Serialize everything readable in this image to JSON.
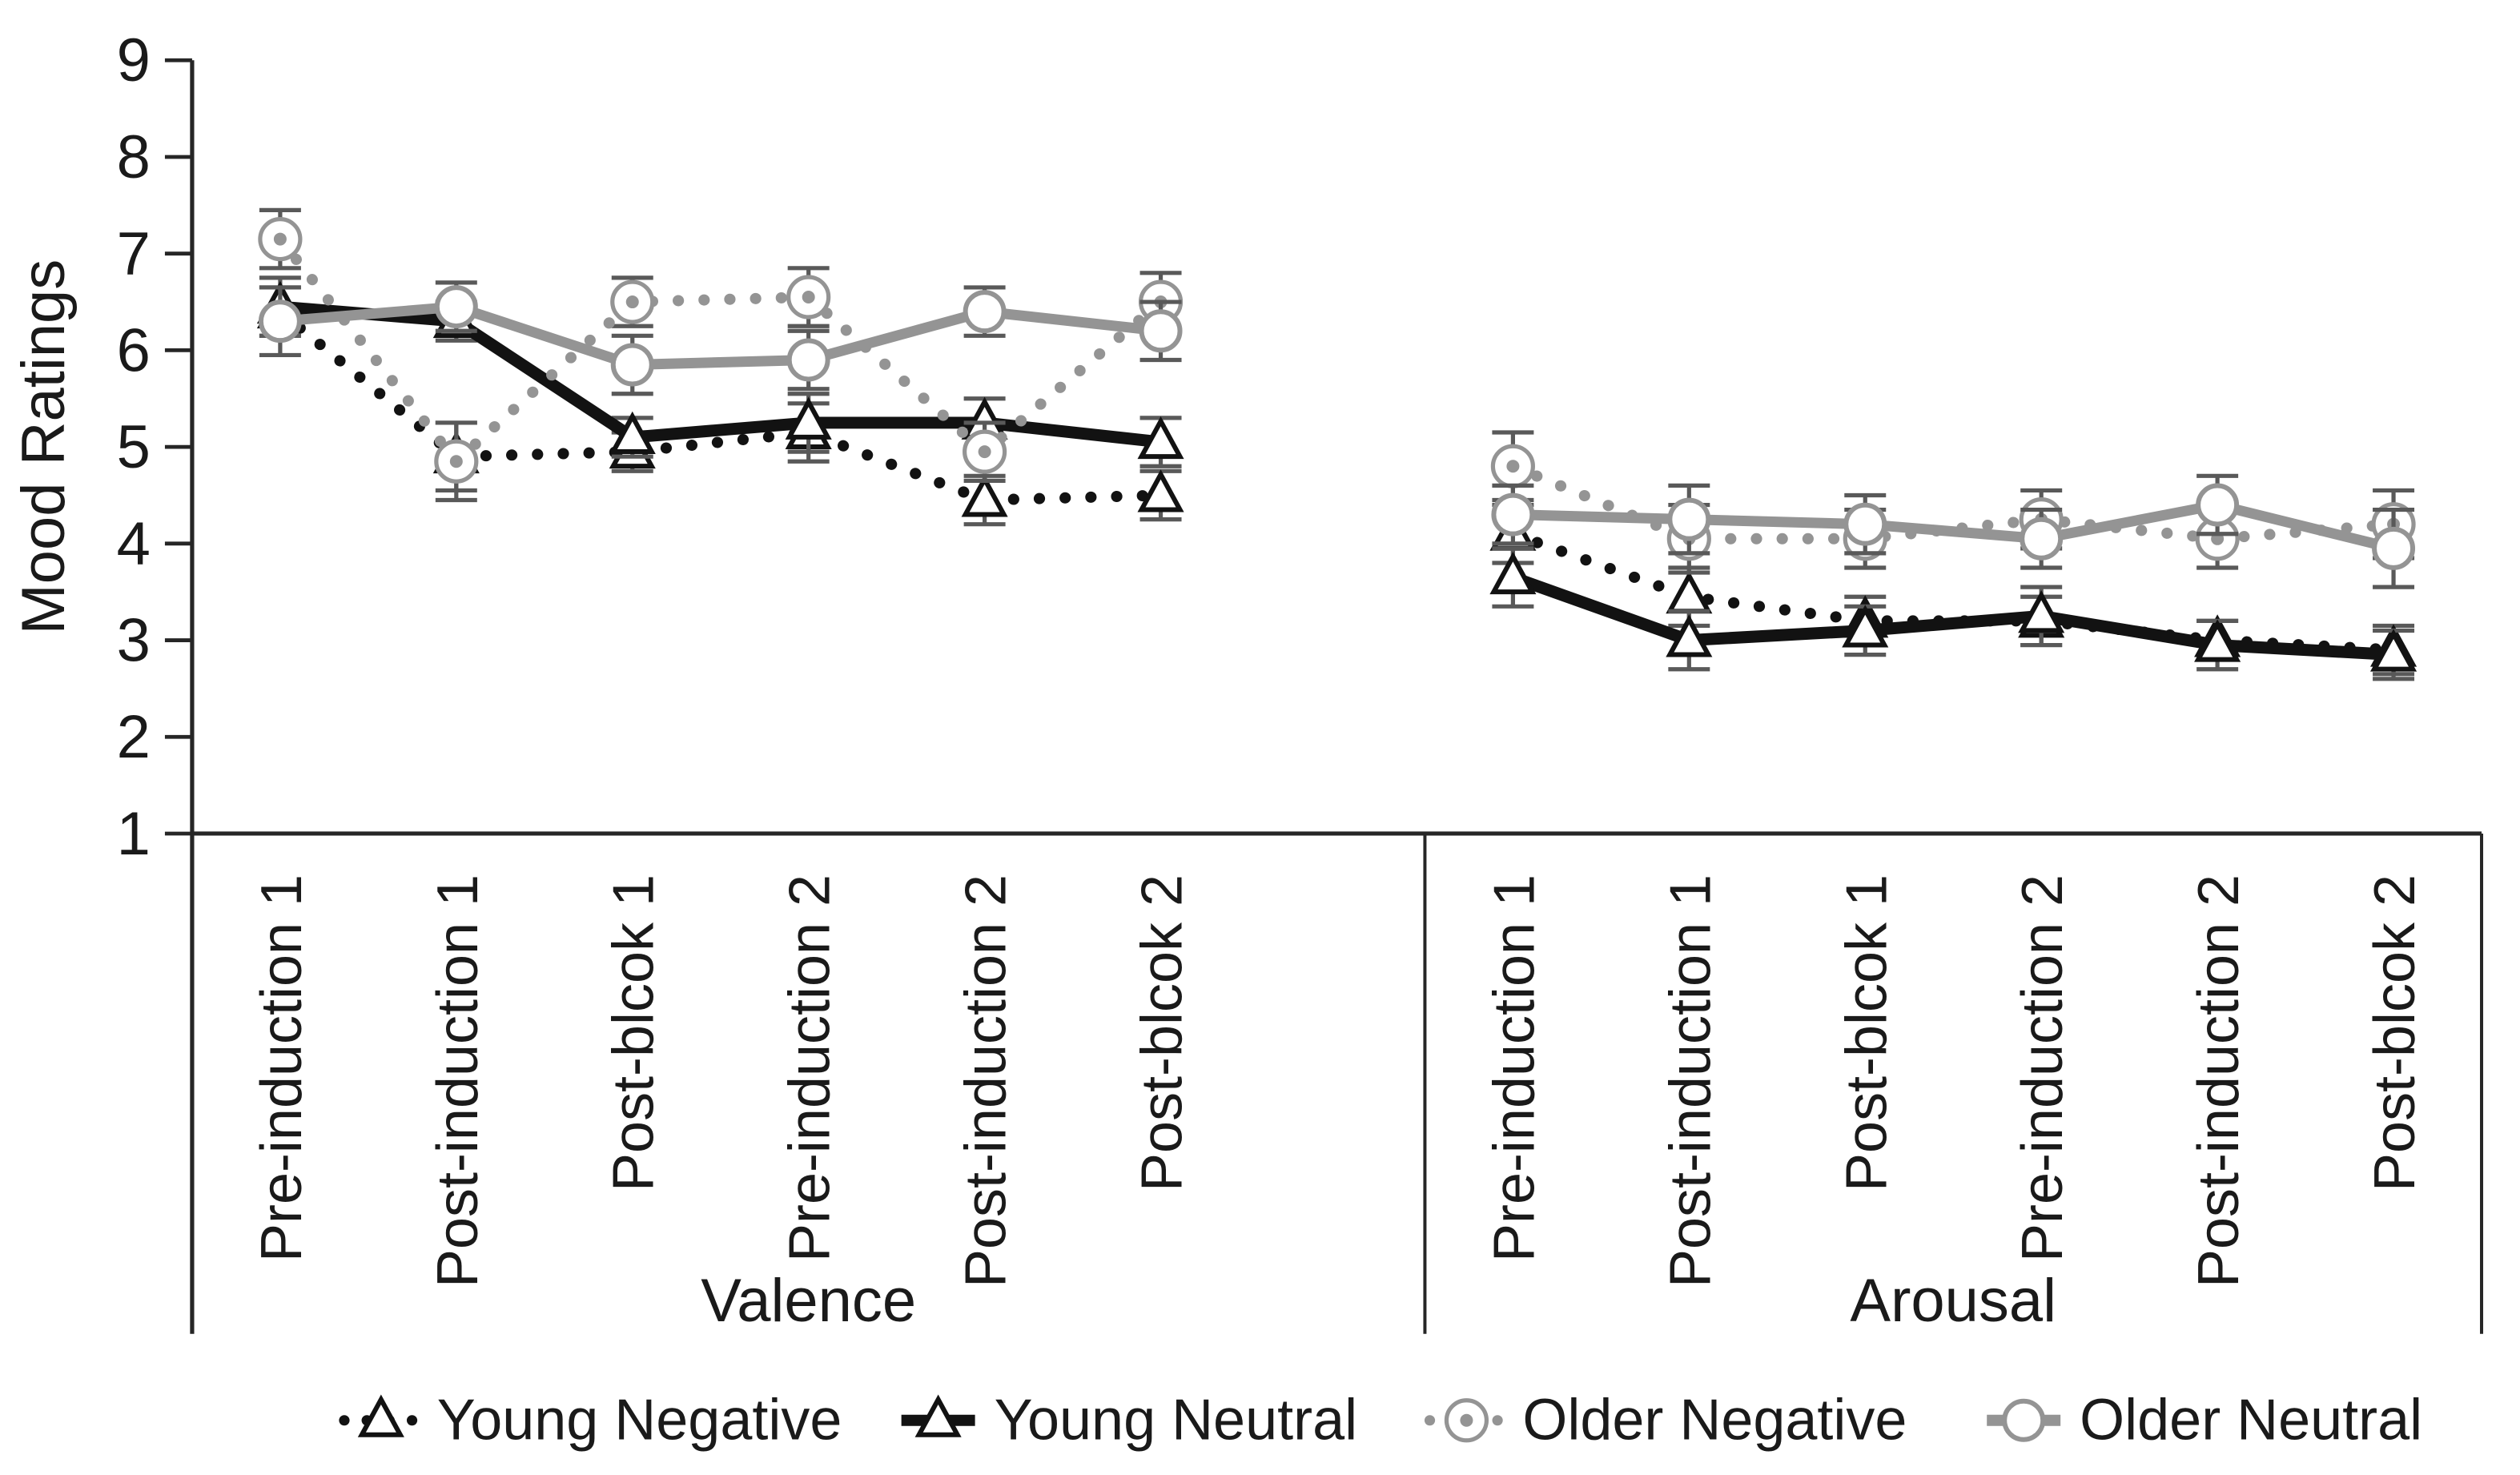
{
  "chart_data": {
    "type": "line",
    "title": "",
    "ylabel": "Mood Ratings",
    "ylim": [
      1,
      9
    ],
    "yticks": [
      1,
      2,
      3,
      4,
      5,
      6,
      7,
      8,
      9
    ],
    "grid": false,
    "legend_position": "bottom",
    "panels": [
      {
        "label": "Valence"
      },
      {
        "label": "Arousal"
      }
    ],
    "categories": [
      "Pre-induction 1",
      "Post-induction 1",
      "Post-blcok 1",
      "Pre-induction 2",
      "Post-induction 2",
      "Post-blcok 2"
    ],
    "series": [
      {
        "name": "Young Negative",
        "color": "#121212",
        "line": "dotted",
        "marker": "triangle",
        "values": {
          "valence": [
            6.4,
            4.9,
            4.95,
            5.15,
            4.45,
            4.5
          ],
          "arousal": [
            4.1,
            3.45,
            3.2,
            3.2,
            3.0,
            2.9
          ]
        },
        "errors": {
          "valence": [
            0.25,
            0.35,
            0.2,
            0.3,
            0.25,
            0.25
          ],
          "arousal": [
            0.3,
            0.3,
            0.25,
            0.25,
            0.2,
            0.25
          ]
        }
      },
      {
        "name": "Young Neutral",
        "color": "#121212",
        "line": "solid",
        "marker": "triangle",
        "values": {
          "valence": [
            6.45,
            6.3,
            5.1,
            5.25,
            5.25,
            5.05
          ],
          "arousal": [
            3.65,
            3.0,
            3.1,
            3.25,
            2.95,
            2.85
          ]
        },
        "errors": {
          "valence": [
            0.3,
            0.2,
            0.2,
            0.3,
            0.25,
            0.25
          ],
          "arousal": [
            0.3,
            0.3,
            0.25,
            0.3,
            0.25,
            0.25
          ]
        }
      },
      {
        "name": "Older Negative",
        "color": "#949494",
        "line": "dotted",
        "marker": "circle-dot",
        "values": {
          "valence": [
            7.15,
            4.85,
            6.5,
            6.55,
            4.95,
            6.5
          ],
          "arousal": [
            4.8,
            4.05,
            4.05,
            4.25,
            4.05,
            4.2
          ]
        },
        "errors": {
          "valence": [
            0.3,
            0.4,
            0.25,
            0.3,
            0.3,
            0.3
          ],
          "arousal": [
            0.35,
            0.35,
            0.3,
            0.3,
            0.3,
            0.35
          ]
        }
      },
      {
        "name": "Older Neutral",
        "color": "#949494",
        "line": "solid",
        "marker": "circle",
        "values": {
          "valence": [
            6.3,
            6.45,
            5.85,
            5.9,
            6.4,
            6.2
          ],
          "arousal": [
            4.3,
            4.25,
            4.2,
            4.05,
            4.4,
            3.95
          ]
        },
        "errors": {
          "valence": [
            0.35,
            0.25,
            0.3,
            0.3,
            0.25,
            0.3
          ],
          "arousal": [
            0.3,
            0.35,
            0.3,
            0.3,
            0.3,
            0.4
          ]
        }
      }
    ],
    "colors": {
      "axis": "#262626",
      "error_bar": "#595959",
      "background": "#ffffff"
    }
  }
}
